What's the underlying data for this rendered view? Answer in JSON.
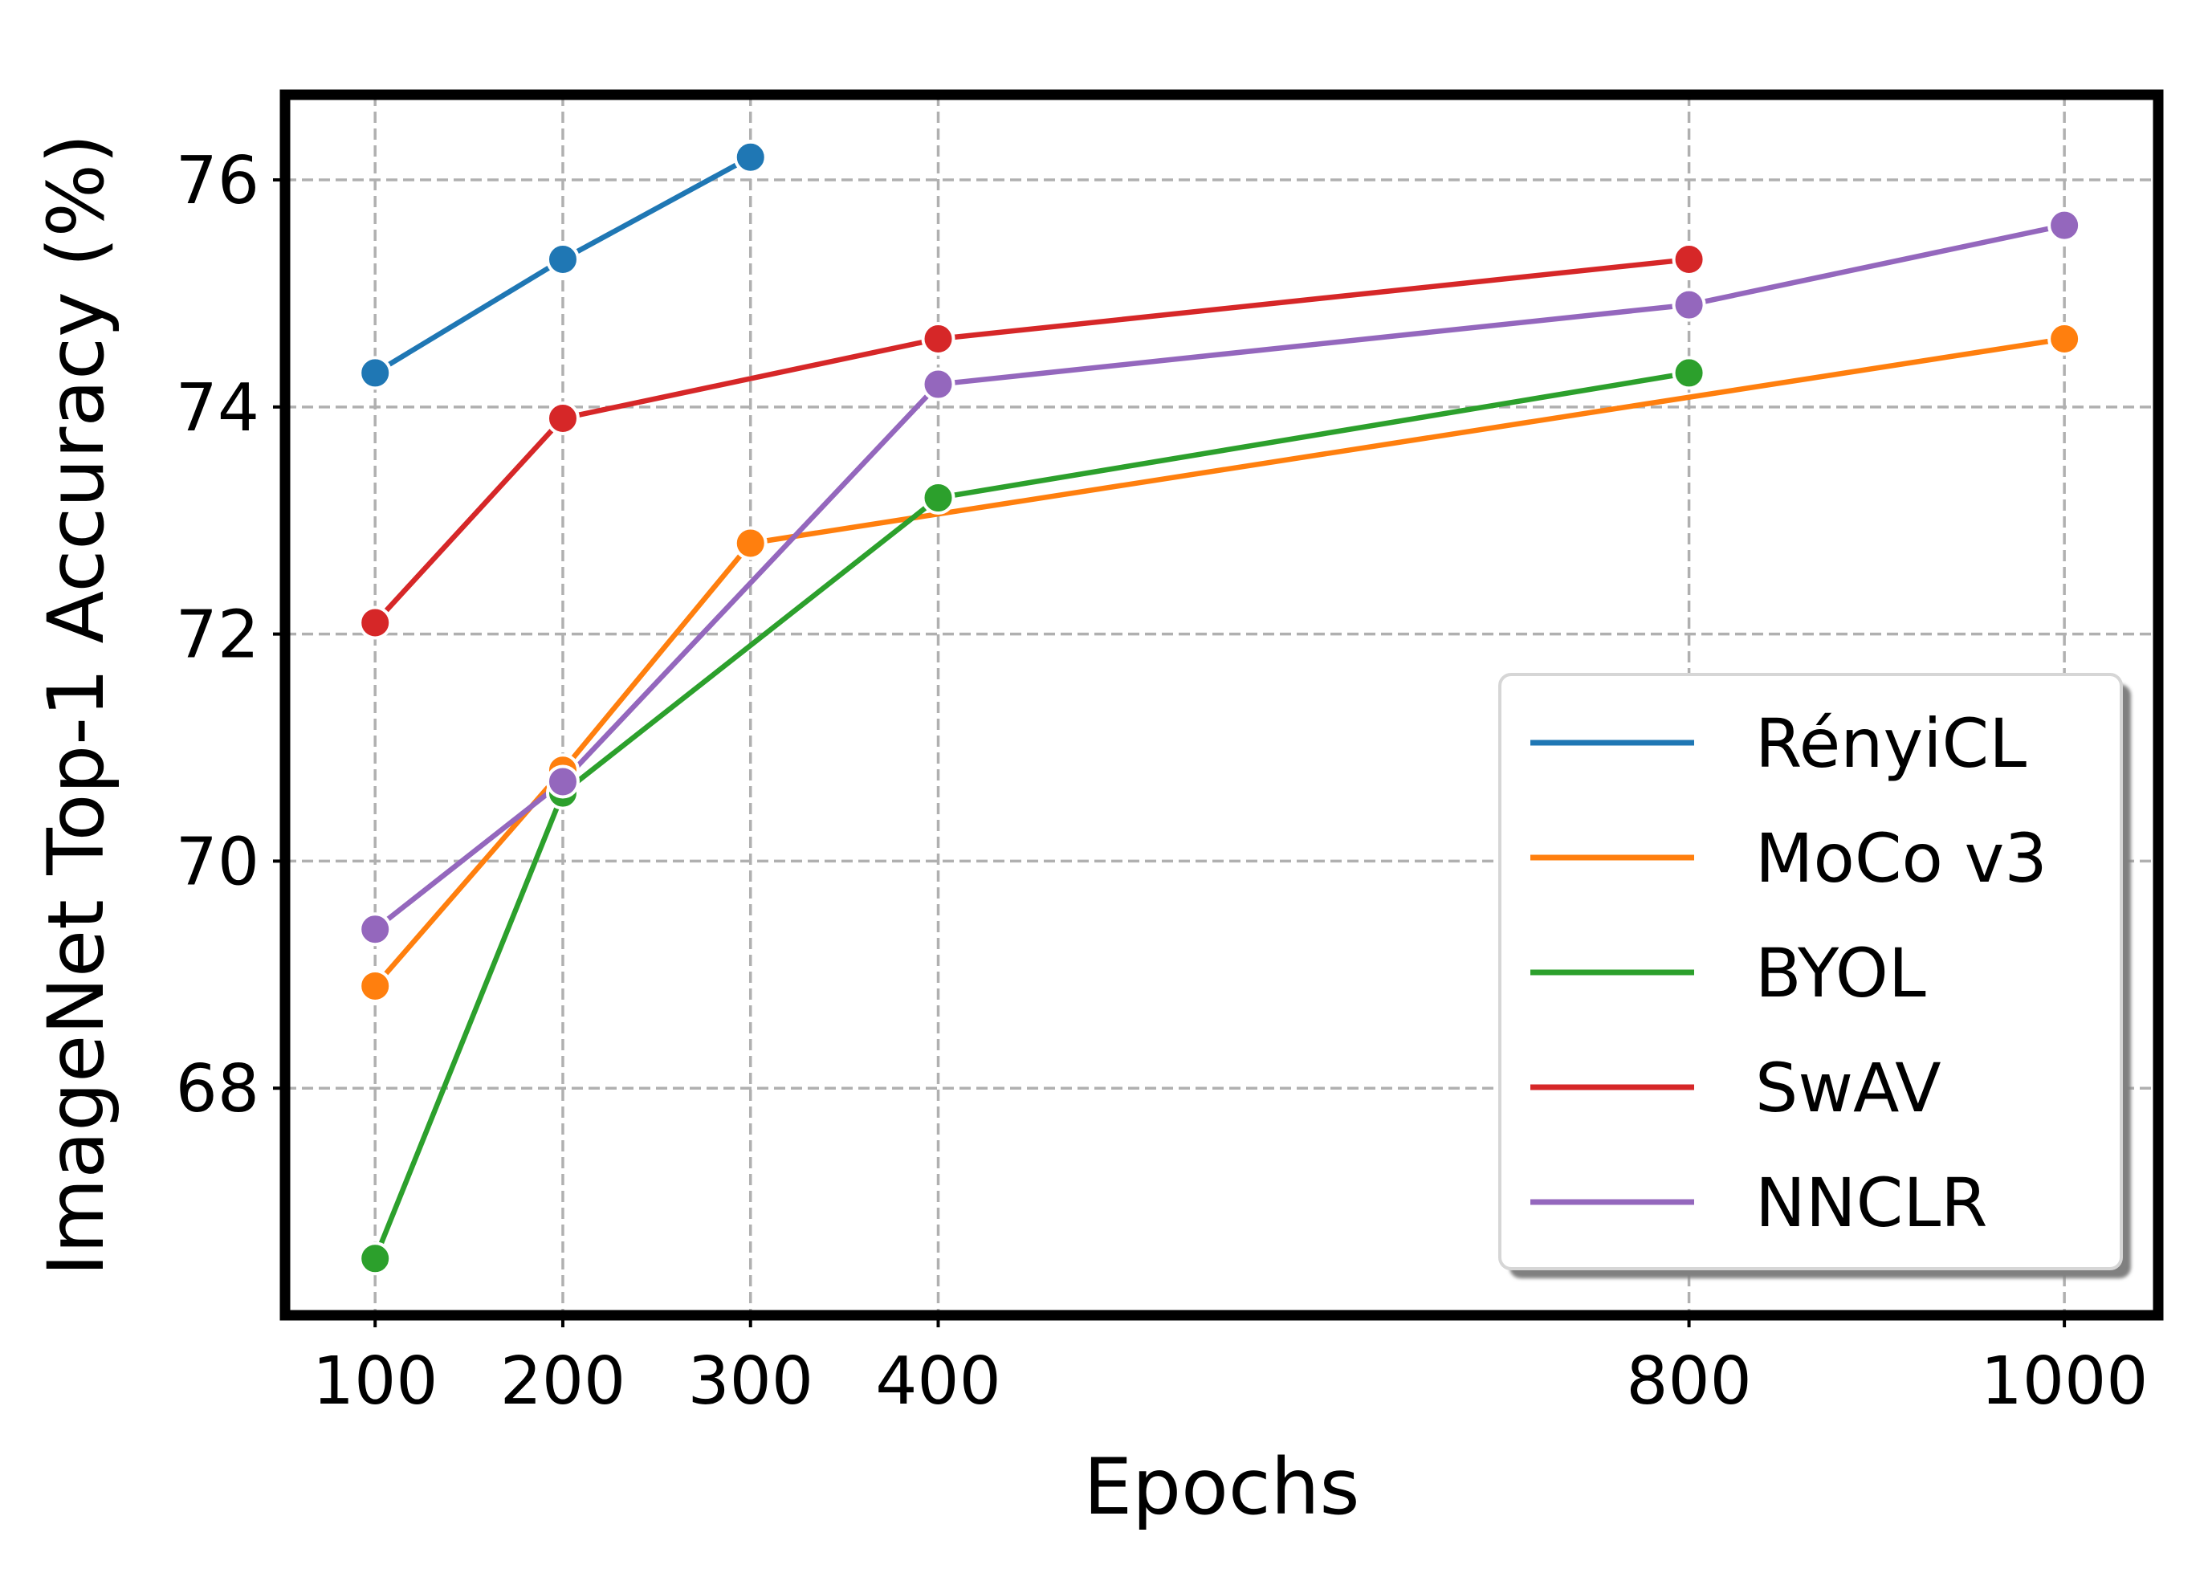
{
  "chart_data": {
    "type": "line",
    "title": "",
    "xlabel": "Epochs",
    "ylabel": "ImageNet Top-1 Accuracy (%)",
    "xlim": [
      52,
      1050
    ],
    "ylim": [
      66.0,
      76.75
    ],
    "xticks": [
      100,
      200,
      300,
      400,
      800,
      1000
    ],
    "xtick_labels": [
      "100",
      "200",
      "300",
      "400",
      "800",
      "1000"
    ],
    "yticks": [
      68,
      70,
      72,
      74,
      76
    ],
    "ytick_labels": [
      "68",
      "70",
      "72",
      "74",
      "76"
    ],
    "grid": true,
    "grid_style": "dashed",
    "legend_position": "bottom-right",
    "series": [
      {
        "name": "RényiCL",
        "color": "#1f77b4",
        "x": [
          100,
          200,
          300
        ],
        "values": [
          74.3,
          75.3,
          76.2
        ]
      },
      {
        "name": "MoCo v3",
        "color": "#ff7f0e",
        "x": [
          100,
          200,
          300,
          1000
        ],
        "values": [
          68.9,
          70.8,
          72.8,
          74.6
        ]
      },
      {
        "name": "BYOL",
        "color": "#2ca02c",
        "x": [
          100,
          200,
          400,
          800
        ],
        "values": [
          66.5,
          70.6,
          73.2,
          74.3
        ]
      },
      {
        "name": "SwAV",
        "color": "#d62728",
        "x": [
          100,
          200,
          400,
          800
        ],
        "values": [
          72.1,
          73.9,
          74.6,
          75.3
        ]
      },
      {
        "name": "NNCLR",
        "color": "#9467bd",
        "x": [
          100,
          200,
          400,
          800,
          1000
        ],
        "values": [
          69.4,
          70.7,
          74.2,
          74.9,
          75.6
        ]
      }
    ]
  }
}
